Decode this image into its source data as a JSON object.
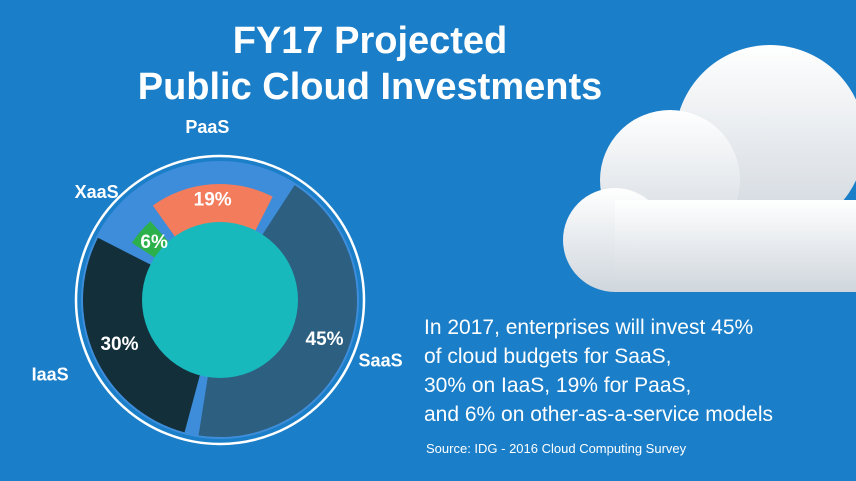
{
  "title_line1": "FY17 Projected",
  "title_line2": "Public Cloud Investments",
  "caption": {
    "lines": [
      "In 2017, enterprises will invest 45%",
      "of cloud budgets for SaaS,",
      "30% on IaaS, 19% for PaaS,",
      "and 6% on other-as-a-service models"
    ]
  },
  "source": "Source: IDG - 2016 Cloud Computing Survey",
  "colors": {
    "background": "#1a7ec8",
    "gap": "#3d8ddb",
    "saas": "#2c5f80",
    "iaas": "#132f3a",
    "xaas": "#2bb04b",
    "paas": "#f27c5c",
    "center": "#17b9bd"
  },
  "chart_data": {
    "type": "pie",
    "style": "donut",
    "slices": [
      {
        "label": "SaaS",
        "value": 45,
        "value_label": "45%",
        "color": "#2c5f80"
      },
      {
        "label": "IaaS",
        "value": 30,
        "value_label": "30%",
        "color": "#132f3a"
      },
      {
        "label": "XaaS",
        "value": 6,
        "value_label": "6%",
        "color": "#2bb04b"
      },
      {
        "label": "PaaS",
        "value": 19,
        "value_label": "19%",
        "color": "#f27c5c"
      }
    ]
  }
}
